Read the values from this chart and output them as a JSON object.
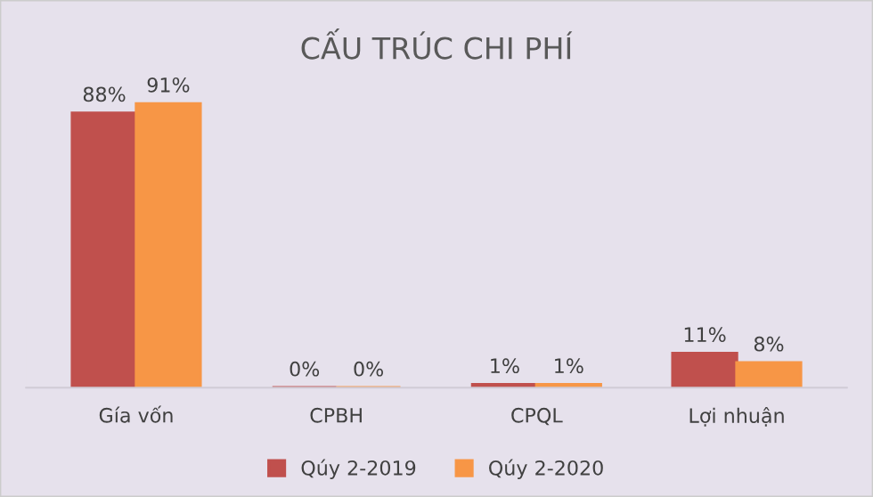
{
  "chart_data": {
    "type": "bar",
    "title": "CẤU TRÚC CHI PHÍ",
    "categories": [
      "Gía vốn",
      "CPBH",
      "CPQL",
      "Lợi nhuận"
    ],
    "series": [
      {
        "name": "Qúy 2-2019",
        "color": "#c0504d",
        "values": [
          88,
          0,
          1,
          11
        ],
        "value_labels": [
          "88%",
          "0%",
          "1%",
          "11%"
        ]
      },
      {
        "name": "Qúy 2-2020",
        "color": "#f79646",
        "values": [
          91,
          0,
          1,
          8
        ],
        "value_labels": [
          "91%",
          "0%",
          "1%",
          "8%"
        ]
      }
    ],
    "legend": "bottom",
    "grid": false,
    "tick_labels": "x"
  }
}
